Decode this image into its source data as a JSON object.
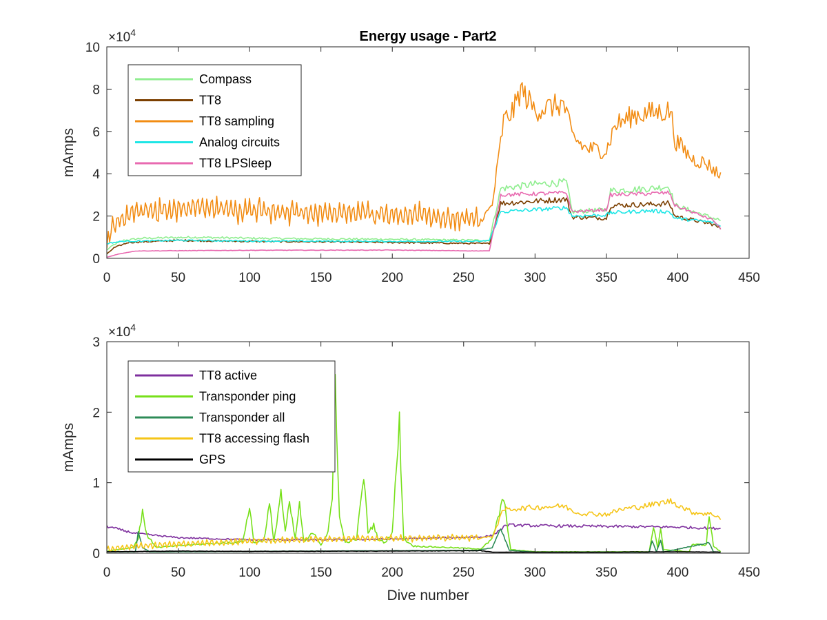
{
  "chart_data": [
    {
      "type": "line",
      "title": "Energy usage - Part2",
      "xlabel": "",
      "ylabel": "mAmps",
      "multiplier_label": "×10",
      "multiplier_exp": "4",
      "xlim": [
        0,
        450
      ],
      "ylim": [
        0,
        100000
      ],
      "xticks": [
        0,
        50,
        100,
        150,
        200,
        250,
        300,
        350,
        400,
        450
      ],
      "yticks": [
        0,
        20000,
        40000,
        60000,
        80000,
        100000
      ],
      "ytick_labels": [
        "0",
        "2",
        "4",
        "6",
        "8",
        "10"
      ],
      "grid": false,
      "legend_position": "top-left",
      "series": [
        {
          "name": "Compass",
          "color": "#90ee90",
          "noise": 0.05,
          "points": [
            [
              0,
              4000
            ],
            [
              5,
              6500
            ],
            [
              12,
              8500
            ],
            [
              25,
              9500
            ],
            [
              60,
              10000
            ],
            [
              100,
              9500
            ],
            [
              150,
              9200
            ],
            [
              200,
              9000
            ],
            [
              262,
              8500
            ],
            [
              268,
              8500
            ],
            [
              276,
              33000
            ],
            [
              300,
              35000
            ],
            [
              322,
              36000
            ],
            [
              326,
              22000
            ],
            [
              350,
              23000
            ],
            [
              353,
              32000
            ],
            [
              380,
              33000
            ],
            [
              394,
              34000
            ],
            [
              398,
              25000
            ],
            [
              425,
              19000
            ],
            [
              430,
              18000
            ]
          ]
        },
        {
          "name": "TT8",
          "color": "#7b3f00",
          "noise": 0.05,
          "points": [
            [
              0,
              2000
            ],
            [
              5,
              5000
            ],
            [
              15,
              7500
            ],
            [
              50,
              8500
            ],
            [
              100,
              8000
            ],
            [
              150,
              7800
            ],
            [
              200,
              7500
            ],
            [
              262,
              7000
            ],
            [
              268,
              7000
            ],
            [
              276,
              26000
            ],
            [
              300,
              27000
            ],
            [
              322,
              28000
            ],
            [
              326,
              19500
            ],
            [
              350,
              19000
            ],
            [
              353,
              25000
            ],
            [
              380,
              25500
            ],
            [
              394,
              26000
            ],
            [
              398,
              20000
            ],
            [
              425,
              16000
            ],
            [
              430,
              14000
            ]
          ]
        },
        {
          "name": "TT8 sampling",
          "color": "#f28c13",
          "noise": 0.08,
          "osc": 5000,
          "osc_end": 262,
          "points": [
            [
              0,
              5000
            ],
            [
              3,
              15000
            ],
            [
              15,
              21000
            ],
            [
              60,
              24000
            ],
            [
              120,
              22000
            ],
            [
              200,
              21000
            ],
            [
              262,
              18000
            ],
            [
              270,
              25000
            ],
            [
              278,
              65000
            ],
            [
              285,
              70000
            ],
            [
              290,
              80000
            ],
            [
              300,
              70000
            ],
            [
              320,
              73000
            ],
            [
              326,
              58000
            ],
            [
              335,
              52000
            ],
            [
              350,
              51000
            ],
            [
              356,
              63000
            ],
            [
              370,
              68000
            ],
            [
              385,
              69000
            ],
            [
              395,
              70000
            ],
            [
              398,
              56000
            ],
            [
              410,
              47000
            ],
            [
              420,
              45000
            ],
            [
              430,
              39000
            ]
          ]
        },
        {
          "name": "Analog circuits",
          "color": "#1ee6e6",
          "noise": 0.04,
          "points": [
            [
              0,
              7000
            ],
            [
              10,
              8000
            ],
            [
              50,
              8500
            ],
            [
              100,
              8200
            ],
            [
              200,
              8000
            ],
            [
              262,
              8000
            ],
            [
              268,
              8500
            ],
            [
              276,
              22000
            ],
            [
              300,
              23000
            ],
            [
              322,
              24000
            ],
            [
              326,
              20000
            ],
            [
              350,
              20500
            ],
            [
              353,
              21500
            ],
            [
              380,
              22500
            ],
            [
              394,
              22000
            ],
            [
              398,
              19000
            ],
            [
              425,
              17000
            ],
            [
              430,
              15000
            ]
          ]
        },
        {
          "name": "TT8 LPSleep",
          "color": "#e86ab0",
          "noise": 0.03,
          "points": [
            [
              0,
              500
            ],
            [
              8,
              2000
            ],
            [
              20,
              3500
            ],
            [
              100,
              3800
            ],
            [
              200,
              3900
            ],
            [
              262,
              3500
            ],
            [
              268,
              3500
            ],
            [
              276,
              30000
            ],
            [
              322,
              31000
            ],
            [
              326,
              22000
            ],
            [
              350,
              23000
            ],
            [
              353,
              30000
            ],
            [
              394,
              31000
            ],
            [
              398,
              25000
            ],
            [
              425,
              18000
            ],
            [
              430,
              14000
            ]
          ]
        }
      ]
    },
    {
      "type": "line",
      "title": "",
      "xlabel": "Dive number",
      "ylabel": "mAmps",
      "multiplier_label": "×10",
      "multiplier_exp": "4",
      "xlim": [
        0,
        450
      ],
      "ylim": [
        0,
        30000
      ],
      "xticks": [
        0,
        50,
        100,
        150,
        200,
        250,
        300,
        350,
        400,
        450
      ],
      "yticks": [
        0,
        10000,
        20000,
        30000
      ],
      "ytick_labels": [
        "0",
        "1",
        "2",
        "3"
      ],
      "grid": false,
      "legend_position": "top-left",
      "series": [
        {
          "name": "TT8 active",
          "color": "#7e2f9e",
          "noise": 0.05,
          "points": [
            [
              0,
              3800
            ],
            [
              20,
              2800
            ],
            [
              50,
              2200
            ],
            [
              100,
              1900
            ],
            [
              150,
              1900
            ],
            [
              200,
              2000
            ],
            [
              262,
              2300
            ],
            [
              270,
              2500
            ],
            [
              280,
              4000
            ],
            [
              300,
              3900
            ],
            [
              350,
              3800
            ],
            [
              400,
              3700
            ],
            [
              430,
              3500
            ]
          ]
        },
        {
          "name": "Transponder ping",
          "color": "#77e01a",
          "noise": 0.1,
          "points": [
            [
              0,
              300
            ],
            [
              18,
              800
            ],
            [
              22,
              2000
            ],
            [
              25,
              6200
            ],
            [
              28,
              2500
            ],
            [
              35,
              800
            ],
            [
              60,
              1200
            ],
            [
              95,
              1600
            ],
            [
              100,
              6500
            ],
            [
              103,
              1500
            ],
            [
              110,
              1800
            ],
            [
              114,
              7000
            ],
            [
              117,
              1500
            ],
            [
              122,
              8800
            ],
            [
              125,
              3000
            ],
            [
              128,
              7000
            ],
            [
              132,
              2000
            ],
            [
              135,
              7000
            ],
            [
              138,
              1500
            ],
            [
              145,
              3000
            ],
            [
              150,
              1200
            ],
            [
              155,
              3000
            ],
            [
              158,
              7500
            ],
            [
              160,
              25500
            ],
            [
              163,
              5000
            ],
            [
              167,
              1500
            ],
            [
              175,
              2000
            ],
            [
              180,
              11000
            ],
            [
              183,
              3000
            ],
            [
              187,
              4000
            ],
            [
              190,
              2000
            ],
            [
              195,
              1500
            ],
            [
              200,
              3000
            ],
            [
              205,
              18500
            ],
            [
              208,
              2000
            ],
            [
              215,
              1000
            ],
            [
              240,
              800
            ],
            [
              262,
              600
            ],
            [
              270,
              2000
            ],
            [
              278,
              7800
            ],
            [
              283,
              500
            ],
            [
              300,
              200
            ],
            [
              350,
              200
            ],
            [
              380,
              200
            ],
            [
              383,
              3800
            ],
            [
              386,
              600
            ],
            [
              388,
              3800
            ],
            [
              390,
              500
            ],
            [
              408,
              200
            ],
            [
              410,
              1200
            ],
            [
              420,
              1200
            ],
            [
              422,
              5500
            ],
            [
              425,
              1000
            ],
            [
              430,
              200
            ]
          ]
        },
        {
          "name": "Transponder all",
          "color": "#2e8b57",
          "noise": 0.05,
          "points": [
            [
              0,
              200
            ],
            [
              20,
              200
            ],
            [
              22,
              3000
            ],
            [
              25,
              800
            ],
            [
              30,
              200
            ],
            [
              260,
              400
            ],
            [
              270,
              800
            ],
            [
              276,
              3500
            ],
            [
              282,
              400
            ],
            [
              300,
              150
            ],
            [
              380,
              150
            ],
            [
              382,
              1800
            ],
            [
              385,
              200
            ],
            [
              388,
              1800
            ],
            [
              390,
              150
            ],
            [
              422,
              1500
            ],
            [
              425,
              200
            ],
            [
              430,
              150
            ]
          ]
        },
        {
          "name": "TT8 accessing flash",
          "color": "#f5c518",
          "noise": 0.06,
          "osc": 450,
          "osc_end": 262,
          "points": [
            [
              0,
              500
            ],
            [
              20,
              1000
            ],
            [
              50,
              1300
            ],
            [
              100,
              1700
            ],
            [
              150,
              2000
            ],
            [
              200,
              2100
            ],
            [
              262,
              2200
            ],
            [
              270,
              2300
            ],
            [
              278,
              6200
            ],
            [
              300,
              6500
            ],
            [
              320,
              6700
            ],
            [
              330,
              5700
            ],
            [
              350,
              5500
            ],
            [
              360,
              6200
            ],
            [
              380,
              6800
            ],
            [
              395,
              7400
            ],
            [
              410,
              5800
            ],
            [
              425,
              5500
            ],
            [
              430,
              5000
            ]
          ]
        },
        {
          "name": "GPS",
          "color": "#000000",
          "noise": 0.1,
          "points": [
            [
              0,
              200
            ],
            [
              50,
              300
            ],
            [
              100,
              250
            ],
            [
              200,
              300
            ],
            [
              262,
              350
            ],
            [
              270,
              150
            ],
            [
              300,
              150
            ],
            [
              350,
              150
            ],
            [
              400,
              200
            ],
            [
              430,
              150
            ]
          ]
        }
      ]
    }
  ]
}
